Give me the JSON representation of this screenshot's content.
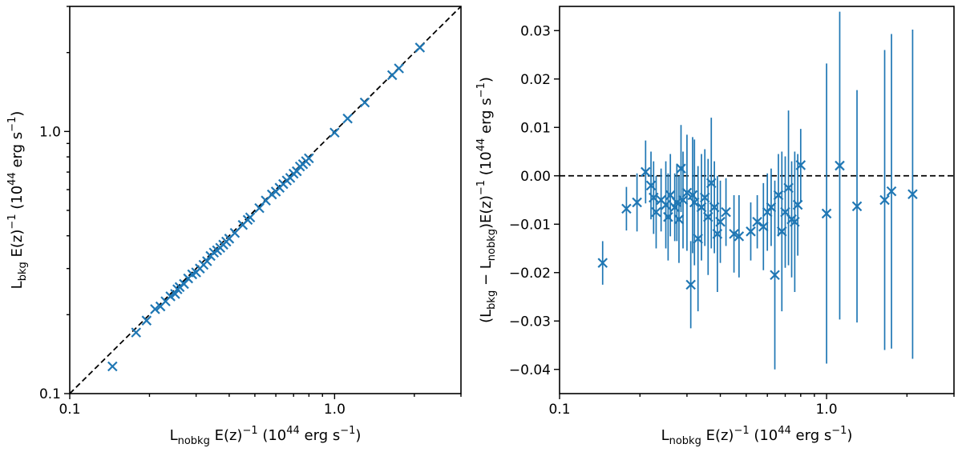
{
  "chart_data": [
    {
      "type": "scatter",
      "xscale": "log",
      "yscale": "log",
      "xlim": [
        0.1,
        3.0
      ],
      "ylim": [
        0.1,
        3.0
      ],
      "x_ticks": [
        0.1,
        1.0
      ],
      "x_tick_labels": [
        "0.1",
        "1.0"
      ],
      "y_ticks": [
        0.1,
        1.0
      ],
      "y_tick_labels": [
        "0.1",
        "1.0"
      ],
      "xlabel": {
        "base": "L",
        "sub": "nobkg",
        "text": " E(z)",
        "sup": "−1",
        "text2": " (10",
        "sup2": "44",
        "text3": " erg s",
        "sup3": "−1",
        "text4": ")"
      },
      "ylabel": {
        "base": "L",
        "sub": "bkg",
        "text": " E(z)",
        "sup": "−1",
        "text2": " (10",
        "sup2": "44",
        "text3": " erg s",
        "sup3": "−1",
        "text4": ")"
      },
      "reference_line": "y = x (dashed)",
      "x": [
        0.145,
        0.178,
        0.195,
        0.21,
        0.22,
        0.23,
        0.24,
        0.25,
        0.255,
        0.26,
        0.27,
        0.28,
        0.29,
        0.3,
        0.31,
        0.32,
        0.33,
        0.34,
        0.35,
        0.36,
        0.37,
        0.38,
        0.39,
        0.4,
        0.42,
        0.45,
        0.47,
        0.48,
        0.52,
        0.55,
        0.58,
        0.6,
        0.62,
        0.64,
        0.66,
        0.68,
        0.7,
        0.72,
        0.74,
        0.76,
        0.78,
        0.8,
        1.0,
        1.12,
        1.3,
        1.65,
        1.75,
        2.1
      ],
      "y": [
        0.127,
        0.171,
        0.19,
        0.21,
        0.215,
        0.225,
        0.235,
        0.24,
        0.25,
        0.255,
        0.262,
        0.275,
        0.285,
        0.29,
        0.3,
        0.31,
        0.32,
        0.335,
        0.345,
        0.352,
        0.36,
        0.37,
        0.38,
        0.39,
        0.41,
        0.44,
        0.46,
        0.47,
        0.51,
        0.545,
        0.575,
        0.59,
        0.61,
        0.63,
        0.65,
        0.665,
        0.69,
        0.705,
        0.735,
        0.75,
        0.77,
        0.79,
        0.99,
        1.12,
        1.29,
        1.64,
        1.74,
        2.09
      ],
      "marker": "x",
      "color": "#1f77b4"
    },
    {
      "type": "scatter",
      "xscale": "log",
      "xlim": [
        0.1,
        3.0
      ],
      "ylim": [
        -0.045,
        0.035
      ],
      "x_ticks": [
        0.1,
        1.0
      ],
      "x_tick_labels": [
        "0.1",
        "1.0"
      ],
      "y_ticks": [
        -0.04,
        -0.03,
        -0.02,
        -0.01,
        0.0,
        0.01,
        0.02,
        0.03
      ],
      "y_tick_labels": [
        "−0.04",
        "−0.03",
        "−0.02",
        "−0.01",
        "0.00",
        "0.01",
        "0.02",
        "0.03"
      ],
      "xlabel": {
        "base": "L",
        "sub": "nobkg",
        "text": " E(z)",
        "sup": "−1",
        "text2": " (10",
        "sup2": "44",
        "text3": " erg s",
        "sup3": "−1",
        "text4": ")"
      },
      "ylabel": {
        "text0": "(L",
        "sub": "bkg",
        "text": " − L",
        "sub2": "nobkg",
        "text2": ")E(z)",
        "sup": "−1",
        "text3": " (10",
        "sup2": "44",
        "text4": " erg s",
        "sup3": "−1",
        "text5": ")"
      },
      "reference_line": "y = 0 (dashed)",
      "x": [
        0.145,
        0.178,
        0.195,
        0.21,
        0.22,
        0.225,
        0.23,
        0.24,
        0.25,
        0.255,
        0.26,
        0.27,
        0.275,
        0.28,
        0.285,
        0.29,
        0.3,
        0.31,
        0.315,
        0.32,
        0.33,
        0.34,
        0.35,
        0.36,
        0.37,
        0.38,
        0.39,
        0.4,
        0.42,
        0.45,
        0.47,
        0.52,
        0.55,
        0.58,
        0.6,
        0.62,
        0.64,
        0.66,
        0.68,
        0.7,
        0.72,
        0.74,
        0.76,
        0.78,
        0.8,
        1.0,
        1.12,
        1.3,
        1.65,
        1.75,
        2.1
      ],
      "y": [
        -0.018,
        -0.0068,
        -0.0055,
        0.0008,
        -0.002,
        -0.0045,
        -0.0075,
        -0.005,
        -0.006,
        -0.0085,
        -0.004,
        -0.0065,
        -0.0055,
        -0.009,
        0.0015,
        -0.005,
        -0.0035,
        -0.0225,
        -0.004,
        -0.0055,
        -0.013,
        -0.0065,
        -0.0045,
        -0.0085,
        -0.0015,
        -0.0065,
        -0.012,
        -0.0095,
        -0.0075,
        -0.012,
        -0.0125,
        -0.0115,
        -0.0095,
        -0.0105,
        -0.0075,
        -0.0065,
        -0.0205,
        -0.004,
        -0.0115,
        -0.0075,
        -0.0025,
        -0.009,
        -0.0095,
        -0.006,
        0.0022,
        -0.0078,
        0.0021,
        -0.0063,
        -0.005,
        -0.0032,
        -0.0038
      ],
      "yerr": [
        0.0045,
        0.0045,
        0.006,
        0.0065,
        0.007,
        0.0075,
        0.0075,
        0.0065,
        0.009,
        0.009,
        0.0085,
        0.007,
        0.008,
        0.009,
        0.009,
        0.01,
        0.012,
        0.009,
        0.012,
        0.013,
        0.015,
        0.011,
        0.01,
        0.012,
        0.0135,
        0.0095,
        0.012,
        0.0085,
        0.007,
        0.008,
        0.0085,
        0.006,
        0.0055,
        0.009,
        0.008,
        0.008,
        0.0195,
        0.0085,
        0.0165,
        0.0115,
        0.016,
        0.012,
        0.0145,
        0.0105,
        0.0075,
        0.031,
        0.0318,
        0.024,
        0.031,
        0.0325,
        0.034
      ],
      "marker": "x",
      "color": "#1f77b4"
    }
  ]
}
